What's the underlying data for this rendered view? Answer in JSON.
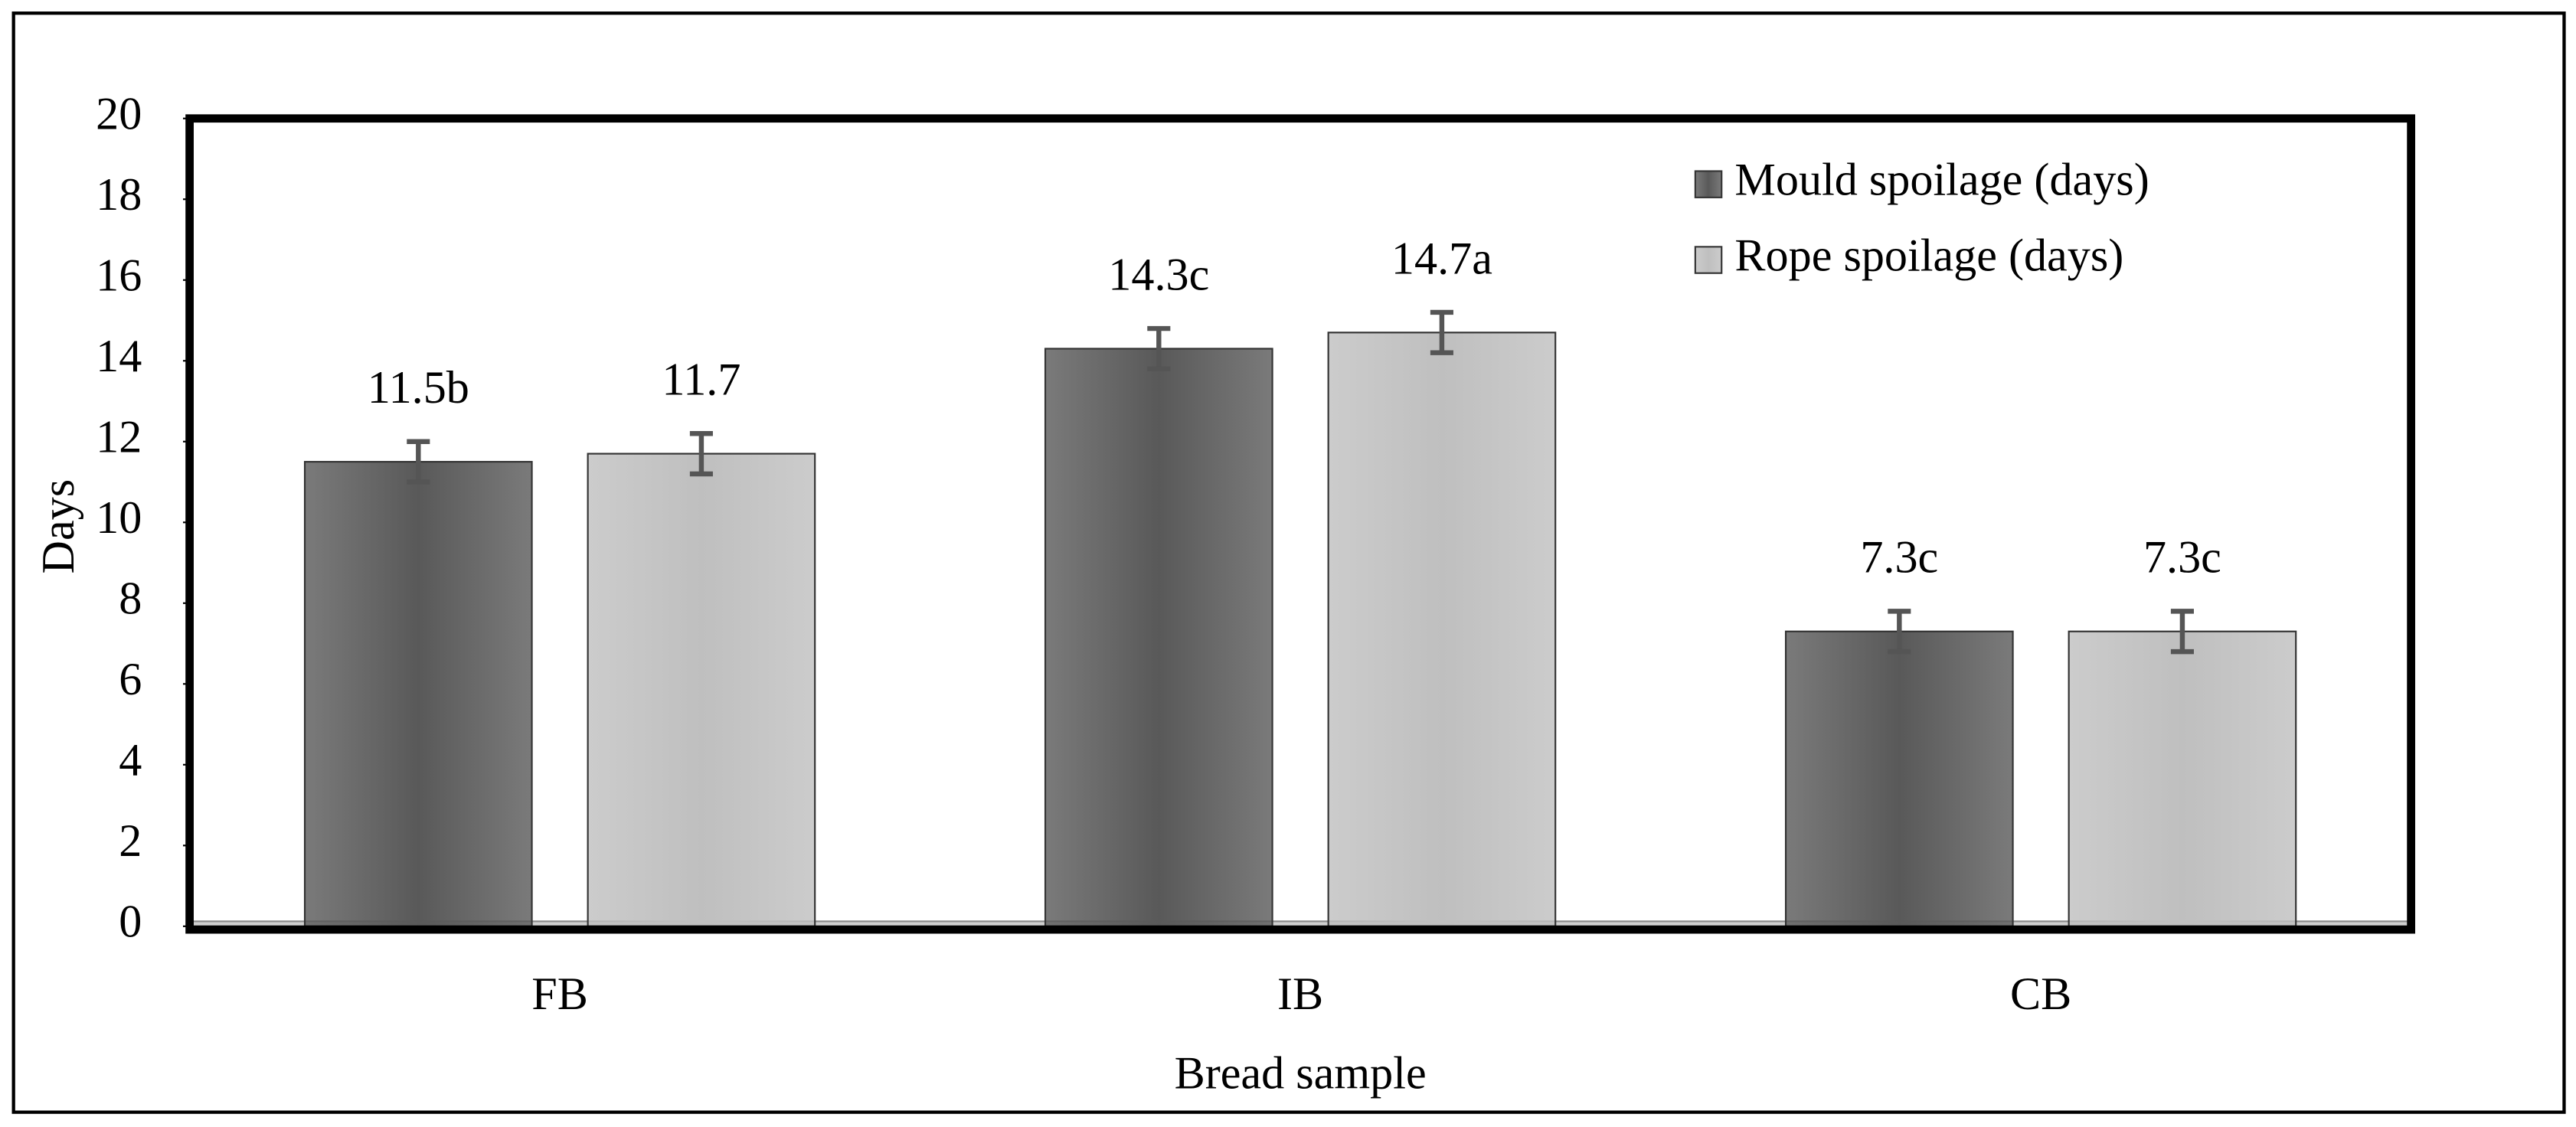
{
  "chart_data": {
    "type": "bar",
    "x_label": "Bread sample",
    "y_label": "Days",
    "categories": [
      "FB",
      "IB",
      "CB"
    ],
    "series": [
      {
        "name": "Mould spoilage (days)",
        "color": "#595959",
        "values": [
          11.5,
          14.3,
          7.3
        ],
        "errors": [
          0.5,
          0.5,
          0.5
        ],
        "value_labels": [
          "11.5b",
          "14.3c",
          "7.3c"
        ]
      },
      {
        "name": "Rope spoilage (days)",
        "color": "#bfbfbf",
        "values": [
          11.7,
          14.7,
          7.3
        ],
        "errors": [
          0.5,
          0.5,
          0.5
        ],
        "value_labels": [
          "11.7",
          "14.7a",
          "7.3c"
        ]
      }
    ],
    "ylim": [
      0,
      20
    ],
    "yticks": [
      0,
      2,
      4,
      6,
      8,
      10,
      12,
      14,
      16,
      18,
      20
    ],
    "grid": false,
    "legend": "top-right"
  }
}
